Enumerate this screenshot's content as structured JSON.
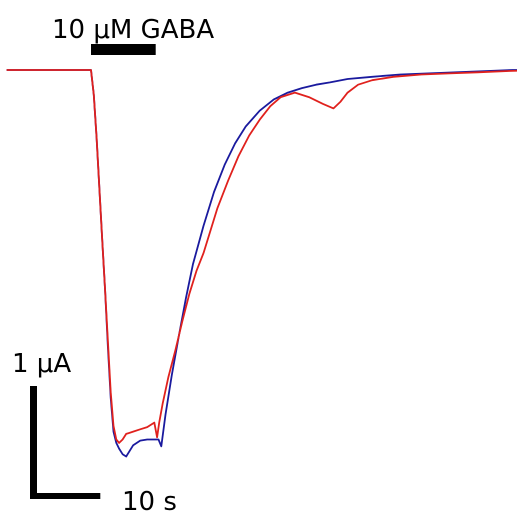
{
  "chart_data": {
    "type": "line",
    "title": "",
    "xlabel": "",
    "ylabel": "",
    "stimulus": {
      "label": "10 μM GABA",
      "start_s": 0,
      "end_s": 9.2
    },
    "scale_bars": {
      "current_label": "1 μA",
      "current_value_uA": 1,
      "time_label": "10 s",
      "time_value_s": 10
    },
    "units": {
      "x": "s",
      "y": "μA"
    },
    "series": [
      {
        "color": "#1a1a9e",
        "x": [
          -12,
          0,
          0.4,
          0.8,
          1.2,
          1.6,
          2.0,
          2.4,
          2.8,
          3.2,
          3.6,
          4.0,
          4.5,
          5.0,
          6.0,
          7.0,
          8.0,
          9.0,
          9.6,
          10.0,
          10.6,
          11.5,
          12.5,
          13.5,
          14.5,
          16.0,
          17.5,
          19.0,
          20.5,
          22.0,
          24.0,
          26.0,
          28.0,
          30.0,
          32.0,
          34.0,
          36.5,
          40.0,
          44.0,
          48.0,
          52.0,
          56.0,
          60.0,
          64.0
        ],
        "y": [
          0,
          0,
          -0.22,
          -0.6,
          -1.05,
          -1.5,
          -1.95,
          -2.45,
          -2.9,
          -3.2,
          -3.3,
          -3.35,
          -3.4,
          -3.42,
          -3.32,
          -3.28,
          -3.27,
          -3.27,
          -3.27,
          -3.33,
          -3.05,
          -2.7,
          -2.35,
          -2.02,
          -1.72,
          -1.38,
          -1.08,
          -0.84,
          -0.65,
          -0.5,
          -0.36,
          -0.26,
          -0.2,
          -0.16,
          -0.13,
          -0.11,
          -0.08,
          -0.06,
          -0.04,
          -0.03,
          -0.02,
          -0.01,
          0,
          0
        ]
      },
      {
        "color": "#e0211d",
        "x": [
          -12,
          0,
          0.4,
          0.8,
          1.2,
          1.6,
          2.0,
          2.4,
          2.8,
          3.2,
          3.6,
          4.0,
          4.5,
          5.0,
          6.0,
          7.0,
          8.0,
          9.0,
          9.4,
          9.7,
          10.2,
          11.0,
          12.0,
          13.0,
          14.0,
          15.0,
          16.0,
          17.0,
          18.0,
          19.5,
          21.0,
          22.5,
          24.0,
          25.5,
          27.0,
          29.0,
          31.0,
          33.0,
          34.5,
          35.5,
          36.5,
          38.0,
          40.0,
          43.0,
          47.0,
          51.0,
          55.0,
          59.0,
          64.0
        ],
        "y": [
          0,
          0,
          -0.22,
          -0.6,
          -1.05,
          -1.5,
          -1.95,
          -2.4,
          -2.85,
          -3.15,
          -3.27,
          -3.3,
          -3.27,
          -3.22,
          -3.2,
          -3.18,
          -3.16,
          -3.12,
          -3.25,
          -3.12,
          -2.95,
          -2.72,
          -2.48,
          -2.22,
          -1.98,
          -1.78,
          -1.62,
          -1.42,
          -1.22,
          -0.98,
          -0.76,
          -0.58,
          -0.44,
          -0.32,
          -0.24,
          -0.2,
          -0.24,
          -0.3,
          -0.34,
          -0.28,
          -0.2,
          -0.13,
          -0.09,
          -0.06,
          -0.04,
          -0.03,
          -0.02,
          -0.01,
          0
        ]
      }
    ]
  }
}
